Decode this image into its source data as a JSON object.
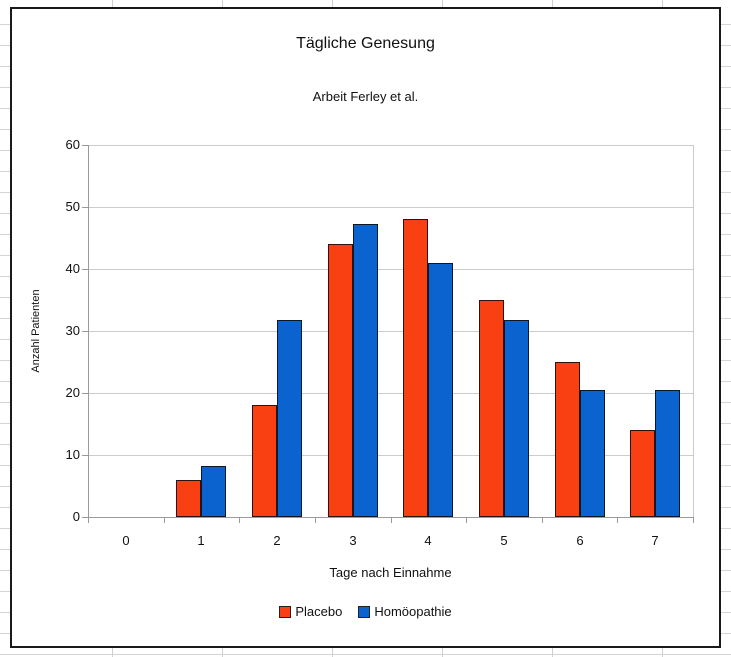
{
  "chart_data": {
    "type": "bar",
    "title": "Tägliche Genesung",
    "subtitle": "Arbeit Ferley et al.",
    "xlabel": "Tage nach Einnahme",
    "ylabel": "Anzahl Patienten",
    "categories": [
      "0",
      "1",
      "2",
      "3",
      "4",
      "5",
      "6",
      "7"
    ],
    "series": [
      {
        "name": "Placebo",
        "color": "#F94012",
        "values": [
          0,
          6,
          18,
          44,
          48,
          35,
          25,
          14
        ]
      },
      {
        "name": "Homöopathie",
        "color": "#0A63CE",
        "values": [
          0,
          8.2,
          31.8,
          47.2,
          41,
          31.8,
          20.5,
          20.5
        ]
      }
    ],
    "ylim": [
      0,
      60
    ],
    "ytick_step": 10,
    "grid": "horizontal",
    "legend_position": "bottom"
  }
}
